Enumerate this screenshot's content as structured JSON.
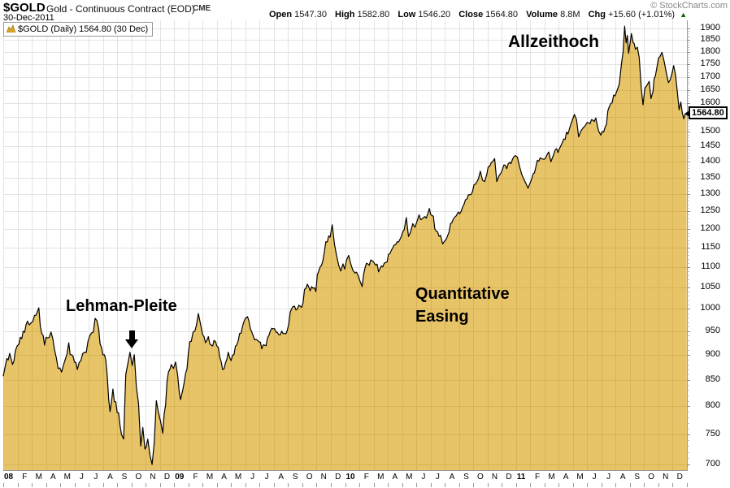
{
  "header": {
    "symbol": "$GOLD",
    "name": "Gold - Continuous Contract (EOD)",
    "exchange": "CME",
    "date": "30-Dec-2011",
    "copyright": "© StockCharts.com",
    "quote": {
      "open_label": "Open",
      "open": "1547.30",
      "high_label": "High",
      "high": "1582.80",
      "low_label": "Low",
      "low": "1546.20",
      "close_label": "Close",
      "close": "1564.80",
      "volume_label": "Volume",
      "volume": "8.8M",
      "chg_label": "Chg",
      "chg": "+15.60 (+1.01%)",
      "up_arrow": "▲"
    }
  },
  "legend": {
    "text": "$GOLD (Daily) 1564.80 (30 Dec)"
  },
  "price_marker": "1564.80",
  "annotations": {
    "lehman": "Lehman-Pleite",
    "qe_line1": "Quantitative",
    "qe_line2": "Easing",
    "ath": "Allzeithoch"
  },
  "colors": {
    "fill": "#E8C468",
    "fill_grid": "#CBA74B",
    "line": "#000000",
    "grid": "#E3E3E3",
    "border": "#BBBBBB",
    "axis": "#999999",
    "chg_up": "#006600"
  },
  "chart_data": {
    "type": "area",
    "title": "$GOLD (Daily)",
    "series_name": "$GOLD",
    "last_close": 1564.8,
    "y_axis": {
      "scale": "log",
      "min": 700,
      "max": 1900,
      "tick_interval": 50,
      "ticks": [
        700,
        750,
        800,
        850,
        900,
        950,
        1000,
        1050,
        1100,
        1150,
        1200,
        1250,
        1300,
        1350,
        1400,
        1450,
        1500,
        1550,
        1600,
        1650,
        1700,
        1750,
        1800,
        1850,
        1900
      ]
    },
    "x_axis": {
      "start_year": 2008,
      "years": [
        "08",
        "09",
        "10",
        "11"
      ],
      "month_letters": [
        "F",
        "M",
        "A",
        "M",
        "J",
        "J",
        "A",
        "S",
        "O",
        "N",
        "D"
      ]
    },
    "points": [
      [
        0,
        857
      ],
      [
        0.25,
        892
      ],
      [
        0.45,
        903
      ],
      [
        0.65,
        880
      ],
      [
        0.85,
        908
      ],
      [
        1.1,
        922
      ],
      [
        1.4,
        950
      ],
      [
        1.7,
        972
      ],
      [
        1.95,
        968
      ],
      [
        2.2,
        985
      ],
      [
        2.5,
        1002
      ],
      [
        2.7,
        945
      ],
      [
        2.9,
        920
      ],
      [
        3.1,
        935
      ],
      [
        3.35,
        948
      ],
      [
        3.6,
        910
      ],
      [
        3.85,
        872
      ],
      [
        4.1,
        865
      ],
      [
        4.35,
        890
      ],
      [
        4.6,
        925
      ],
      [
        4.8,
        900
      ],
      [
        5,
        885
      ],
      [
        5.2,
        870
      ],
      [
        5.45,
        888
      ],
      [
        5.7,
        905
      ],
      [
        5.95,
        928
      ],
      [
        6.2,
        946
      ],
      [
        6.45,
        978
      ],
      [
        6.7,
        955
      ],
      [
        6.9,
        915
      ],
      [
        7.1,
        900
      ],
      [
        7.3,
        858
      ],
      [
        7.5,
        790
      ],
      [
        7.7,
        832
      ],
      [
        7.9,
        808
      ],
      [
        8.1,
        788
      ],
      [
        8.3,
        750
      ],
      [
        8.45,
        742
      ],
      [
        8.6,
        860
      ],
      [
        8.75,
        882
      ],
      [
        8.9,
        905
      ],
      [
        9.05,
        878
      ],
      [
        9.2,
        900
      ],
      [
        9.35,
        835
      ],
      [
        9.5,
        805
      ],
      [
        9.65,
        730
      ],
      [
        9.8,
        762
      ],
      [
        9.95,
        725
      ],
      [
        10.15,
        742
      ],
      [
        10.3,
        715
      ],
      [
        10.45,
        700
      ],
      [
        10.6,
        735
      ],
      [
        10.75,
        810
      ],
      [
        10.9,
        788
      ],
      [
        11.05,
        772
      ],
      [
        11.2,
        752
      ],
      [
        11.4,
        802
      ],
      [
        11.6,
        865
      ],
      [
        11.8,
        880
      ],
      [
        11.95,
        872
      ],
      [
        12.1,
        885
      ],
      [
        12.25,
        858
      ],
      [
        12.45,
        812
      ],
      [
        12.6,
        830
      ],
      [
        12.8,
        862
      ],
      [
        13,
        905
      ],
      [
        13.2,
        928
      ],
      [
        13.45,
        950
      ],
      [
        13.7,
        989
      ],
      [
        13.85,
        965
      ],
      [
        14,
        942
      ],
      [
        14.2,
        925
      ],
      [
        14.4,
        938
      ],
      [
        14.6,
        920
      ],
      [
        14.8,
        930
      ],
      [
        15,
        918
      ],
      [
        15.2,
        895
      ],
      [
        15.4,
        870
      ],
      [
        15.6,
        883
      ],
      [
        15.8,
        905
      ],
      [
        16,
        888
      ],
      [
        16.2,
        900
      ],
      [
        16.4,
        920
      ],
      [
        16.6,
        945
      ],
      [
        16.8,
        960
      ],
      [
        17,
        978
      ],
      [
        17.15,
        982
      ],
      [
        17.35,
        955
      ],
      [
        17.55,
        940
      ],
      [
        17.75,
        932
      ],
      [
        17.95,
        927
      ],
      [
        18.15,
        912
      ],
      [
        18.35,
        920
      ],
      [
        18.55,
        935
      ],
      [
        18.75,
        950
      ],
      [
        18.95,
        955
      ],
      [
        19.15,
        948
      ],
      [
        19.35,
        942
      ],
      [
        19.55,
        950
      ],
      [
        19.75,
        945
      ],
      [
        19.95,
        952
      ],
      [
        20.15,
        992
      ],
      [
        20.35,
        1005
      ],
      [
        20.55,
        997
      ],
      [
        20.75,
        1008
      ],
      [
        20.95,
        1003
      ],
      [
        21.15,
        1045
      ],
      [
        21.35,
        1058
      ],
      [
        21.55,
        1042
      ],
      [
        21.75,
        1048
      ],
      [
        21.95,
        1040
      ],
      [
        22.15,
        1090
      ],
      [
        22.35,
        1105
      ],
      [
        22.55,
        1140
      ],
      [
        22.75,
        1165
      ],
      [
        22.95,
        1178
      ],
      [
        23.1,
        1212
      ],
      [
        23.25,
        1160
      ],
      [
        23.4,
        1130
      ],
      [
        23.55,
        1105
      ],
      [
        23.7,
        1090
      ],
      [
        23.85,
        1108
      ],
      [
        23.97,
        1095
      ],
      [
        24.1,
        1118
      ],
      [
        24.25,
        1130
      ],
      [
        24.4,
        1108
      ],
      [
        24.55,
        1092
      ],
      [
        24.7,
        1085
      ],
      [
        24.9,
        1080
      ],
      [
        25.05,
        1065
      ],
      [
        25.2,
        1052
      ],
      [
        25.4,
        1098
      ],
      [
        25.6,
        1108
      ],
      [
        25.8,
        1118
      ],
      [
        25.95,
        1115
      ],
      [
        26.15,
        1105
      ],
      [
        26.35,
        1088
      ],
      [
        26.55,
        1103
      ],
      [
        26.75,
        1110
      ],
      [
        26.95,
        1113
      ],
      [
        27.15,
        1135
      ],
      [
        27.35,
        1150
      ],
      [
        27.55,
        1158
      ],
      [
        27.75,
        1165
      ],
      [
        27.95,
        1180
      ],
      [
        28.15,
        1198
      ],
      [
        28.3,
        1232
      ],
      [
        28.45,
        1180
      ],
      [
        28.6,
        1192
      ],
      [
        28.75,
        1215
      ],
      [
        28.9,
        1205
      ],
      [
        29.05,
        1222
      ],
      [
        29.2,
        1240
      ],
      [
        29.4,
        1228
      ],
      [
        29.6,
        1235
      ],
      [
        29.8,
        1242
      ],
      [
        29.92,
        1258
      ],
      [
        30.1,
        1238
      ],
      [
        30.3,
        1200
      ],
      [
        30.5,
        1192
      ],
      [
        30.7,
        1183
      ],
      [
        30.85,
        1160
      ],
      [
        31,
        1168
      ],
      [
        31.2,
        1182
      ],
      [
        31.4,
        1215
      ],
      [
        31.6,
        1228
      ],
      [
        31.8,
        1237
      ],
      [
        31.95,
        1248
      ],
      [
        32.15,
        1250
      ],
      [
        32.35,
        1270
      ],
      [
        32.55,
        1285
      ],
      [
        32.75,
        1298
      ],
      [
        32.95,
        1308
      ],
      [
        33.15,
        1330
      ],
      [
        33.35,
        1345
      ],
      [
        33.5,
        1370
      ],
      [
        33.65,
        1342
      ],
      [
        33.8,
        1338
      ],
      [
        33.95,
        1360
      ],
      [
        34.15,
        1385
      ],
      [
        34.35,
        1400
      ],
      [
        34.5,
        1410
      ],
      [
        34.65,
        1338
      ],
      [
        34.8,
        1355
      ],
      [
        34.95,
        1365
      ],
      [
        35.15,
        1390
      ],
      [
        35.35,
        1378
      ],
      [
        35.55,
        1398
      ],
      [
        35.75,
        1408
      ],
      [
        35.95,
        1420
      ],
      [
        36.1,
        1415
      ],
      [
        36.25,
        1385
      ],
      [
        36.4,
        1360
      ],
      [
        36.55,
        1345
      ],
      [
        36.7,
        1332
      ],
      [
        36.85,
        1318
      ],
      [
        37,
        1335
      ],
      [
        37.2,
        1362
      ],
      [
        37.4,
        1385
      ],
      [
        37.6,
        1402
      ],
      [
        37.8,
        1410
      ],
      [
        37.95,
        1408
      ],
      [
        38.15,
        1420
      ],
      [
        38.3,
        1432
      ],
      [
        38.45,
        1400
      ],
      [
        38.6,
        1418
      ],
      [
        38.75,
        1438
      ],
      [
        38.95,
        1430
      ],
      [
        39.15,
        1452
      ],
      [
        39.35,
        1475
      ],
      [
        39.55,
        1498
      ],
      [
        39.75,
        1510
      ],
      [
        39.95,
        1540
      ],
      [
        40.1,
        1560
      ],
      [
        40.25,
        1542
      ],
      [
        40.4,
        1482
      ],
      [
        40.55,
        1502
      ],
      [
        40.7,
        1512
      ],
      [
        40.85,
        1520
      ],
      [
        41,
        1532
      ],
      [
        41.2,
        1528
      ],
      [
        41.4,
        1540
      ],
      [
        41.6,
        1548
      ],
      [
        41.8,
        1502
      ],
      [
        41.95,
        1488
      ],
      [
        42.15,
        1498
      ],
      [
        42.35,
        1525
      ],
      [
        42.55,
        1588
      ],
      [
        42.75,
        1602
      ],
      [
        42.95,
        1628
      ],
      [
        43.1,
        1648
      ],
      [
        43.25,
        1672
      ],
      [
        43.4,
        1750
      ],
      [
        43.52,
        1800
      ],
      [
        43.63,
        1910
      ],
      [
        43.73,
        1838
      ],
      [
        43.82,
        1870
      ],
      [
        43.9,
        1795
      ],
      [
        44,
        1832
      ],
      [
        44.1,
        1878
      ],
      [
        44.22,
        1840
      ],
      [
        44.38,
        1812
      ],
      [
        44.52,
        1820
      ],
      [
        44.65,
        1778
      ],
      [
        44.8,
        1655
      ],
      [
        44.92,
        1595
      ],
      [
        45.05,
        1657
      ],
      [
        45.2,
        1668
      ],
      [
        45.35,
        1683
      ],
      [
        45.48,
        1618
      ],
      [
        45.62,
        1645
      ],
      [
        45.78,
        1702
      ],
      [
        45.92,
        1747
      ],
      [
        46.1,
        1780
      ],
      [
        46.25,
        1799
      ],
      [
        46.4,
        1762
      ],
      [
        46.55,
        1718
      ],
      [
        46.7,
        1678
      ],
      [
        46.82,
        1688
      ],
      [
        46.95,
        1713
      ],
      [
        47.07,
        1745
      ],
      [
        47.2,
        1708
      ],
      [
        47.33,
        1640
      ],
      [
        47.45,
        1577
      ],
      [
        47.57,
        1605
      ],
      [
        47.68,
        1565
      ],
      [
        47.78,
        1545
      ],
      [
        47.88,
        1562
      ],
      [
        47.97,
        1564.8
      ]
    ]
  }
}
